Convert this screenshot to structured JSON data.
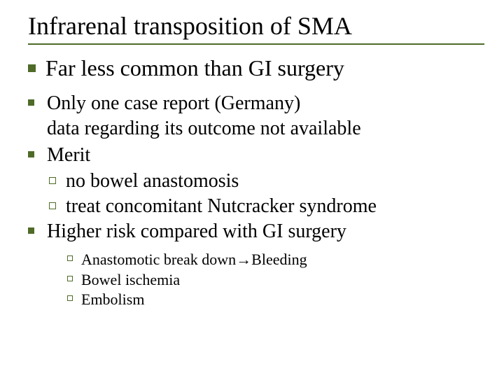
{
  "colors": {
    "bullet_fill": "#4e6b28",
    "bullet_border": "#4e6b28",
    "underline": "#4e6b28",
    "text": "#000000",
    "background": "#ffffff"
  },
  "title": "Infrarenal transposition of SMA",
  "lead": "Far less common than GI surgery",
  "items": [
    {
      "lines": [
        "Only one case report (Germany)",
        "data regarding its outcome not available"
      ]
    },
    {
      "lines": [
        "Merit"
      ],
      "sub": [
        "no bowel anastomosis",
        "treat concomitant Nutcracker syndrome"
      ]
    },
    {
      "lines": [
        "Higher risk compared with GI surgery"
      ],
      "sub_small": [
        "Anastomotic break down→Bleeding",
        "Bowel ischemia",
        "Embolism"
      ]
    }
  ]
}
